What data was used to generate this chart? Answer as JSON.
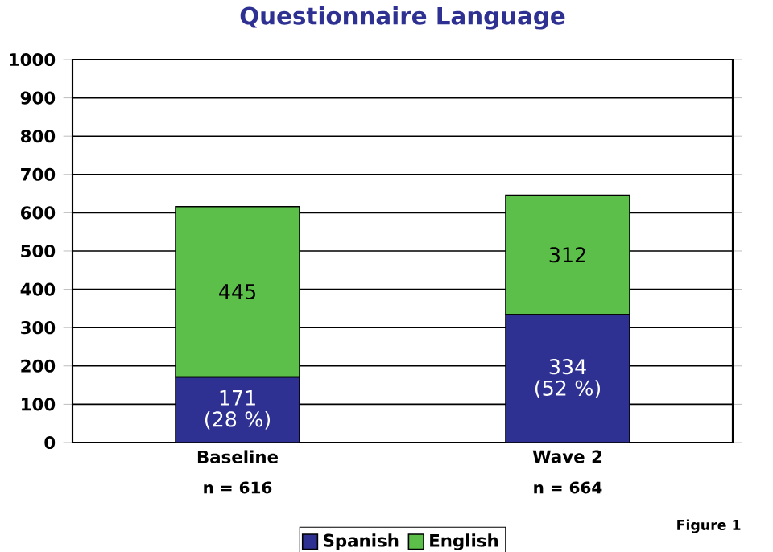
{
  "chart_data": {
    "type": "bar",
    "stacked": true,
    "title": "Questionnaire Language",
    "categories": [
      "Baseline",
      "Wave 2"
    ],
    "series": [
      {
        "name": "Spanish",
        "color": "#2e3192",
        "values": [
          171,
          334
        ],
        "value_labels": [
          "171 (28 %)",
          "334 (52 %)"
        ]
      },
      {
        "name": "English",
        "color": "#5cbf4a",
        "values": [
          445,
          312
        ],
        "value_labels": [
          "445",
          "312"
        ]
      }
    ],
    "ylim": [
      0,
      1000
    ],
    "yticks": [
      0,
      100,
      200,
      300,
      400,
      500,
      600,
      700,
      800,
      900,
      1000
    ],
    "grid": "y",
    "legend": "bottom",
    "annotations": [
      "n = 616",
      "n = 664",
      "Figure 1"
    ]
  }
}
